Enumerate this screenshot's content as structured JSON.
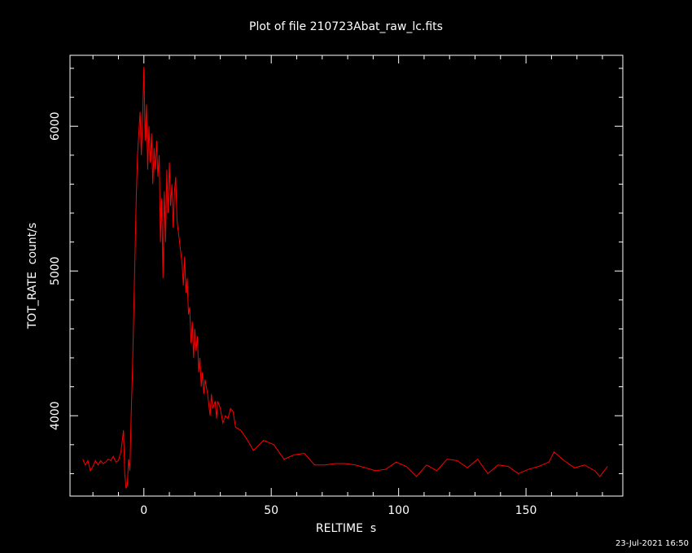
{
  "chart_data": {
    "type": "line",
    "title": "Plot of file 210723Abat_raw_lc.fits",
    "xlabel": "RELTIME  s",
    "ylabel": "TOT_RATE  count/s",
    "timestamp": "23-Jul-2021 16:50",
    "color": "#ff0000",
    "xlim": [
      -29,
      188
    ],
    "ylim": [
      3445,
      6490
    ],
    "xticks": [
      0,
      50,
      100,
      150
    ],
    "yticks": [
      4000,
      5000,
      6000
    ],
    "x_minor_ticks": [
      -20,
      -10,
      10,
      20,
      30,
      40,
      60,
      70,
      80,
      90,
      110,
      120,
      130,
      140,
      160,
      170,
      180
    ],
    "y_minor_ticks": [
      3600,
      3800,
      4200,
      4400,
      4600,
      4800,
      5200,
      5400,
      5600,
      5800,
      6200,
      6400
    ],
    "x": [
      -24,
      -23,
      -22,
      -21,
      -20,
      -19,
      -18,
      -17,
      -16,
      -15,
      -14,
      -13,
      -12,
      -11,
      -10,
      -9,
      -8,
      -7.5,
      -7,
      -6.5,
      -6,
      -5.5,
      -5,
      -4.5,
      -4,
      -3.5,
      -3,
      -2.5,
      -2,
      -1.5,
      -1,
      -0.5,
      0,
      0.5,
      1,
      1.5,
      2,
      2.5,
      3,
      3.5,
      4,
      4.5,
      5,
      5.5,
      6,
      6.5,
      7,
      7.5,
      8,
      8.5,
      9,
      9.5,
      10,
      10.5,
      11,
      11.5,
      12,
      12.5,
      13,
      14,
      15,
      15.5,
      16,
      16.5,
      17,
      17.5,
      18,
      18.5,
      19,
      19.5,
      20,
      20.5,
      21,
      21.5,
      22,
      22.5,
      23,
      23.5,
      24,
      25,
      26,
      26.5,
      27,
      28,
      28.5,
      29,
      30,
      31,
      32,
      33,
      34,
      35,
      36,
      38,
      40,
      43,
      47,
      51,
      55,
      59,
      63,
      67,
      71,
      75,
      79,
      83,
      87,
      91,
      95,
      99,
      103,
      107,
      111,
      115,
      119,
      123,
      127,
      131,
      135,
      139,
      143,
      147,
      151,
      155,
      159,
      161,
      165,
      169,
      173,
      177,
      179,
      182
    ],
    "values": [
      3700,
      3660,
      3690,
      3620,
      3650,
      3690,
      3660,
      3690,
      3670,
      3680,
      3700,
      3690,
      3720,
      3680,
      3690,
      3750,
      3900,
      3600,
      3500,
      3520,
      3700,
      3620,
      4000,
      4300,
      4700,
      5100,
      5500,
      5800,
      5950,
      6100,
      5800,
      6050,
      6410,
      5900,
      6150,
      5700,
      6000,
      5750,
      5950,
      5600,
      5850,
      5700,
      5900,
      5650,
      5800,
      5200,
      5500,
      4950,
      5550,
      5200,
      5700,
      5400,
      5750,
      5450,
      5600,
      5300,
      5550,
      5650,
      5350,
      5200,
      5050,
      4900,
      5100,
      4850,
      4950,
      4700,
      4750,
      4500,
      4650,
      4400,
      4600,
      4450,
      4550,
      4300,
      4400,
      4200,
      4300,
      4150,
      4250,
      4150,
      4000,
      4150,
      4050,
      4100,
      3980,
      4100,
      4050,
      3950,
      4000,
      3980,
      4050,
      4030,
      3920,
      3900,
      3850,
      3760,
      3830,
      3800,
      3700,
      3730,
      3740,
      3660,
      3660,
      3670,
      3670,
      3660,
      3640,
      3620,
      3630,
      3680,
      3650,
      3580,
      3660,
      3620,
      3700,
      3690,
      3640,
      3700,
      3600,
      3660,
      3650,
      3600,
      3630,
      3650,
      3680,
      3750,
      3690,
      3640,
      3660,
      3620,
      3580,
      3650
    ]
  }
}
